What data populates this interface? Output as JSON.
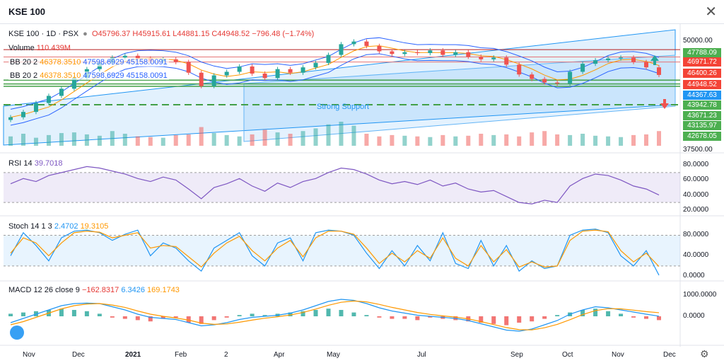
{
  "window": {
    "title": "KSE 100"
  },
  "legend": {
    "symbol": "KSE 100 · 1D · PSX",
    "ohlc": "O45796.37 H45915.61 L44881.15 C44948.52 −796.48 (−1.74%)",
    "volume_label": "Volume",
    "volume_value": "110.439M",
    "bb1_label": "BB 20 2",
    "bb1_basis": "46378.3510",
    "bb1_upper": "47598.6929",
    "bb1_lower": "45158.0091",
    "bb2_label": "BB 20 2",
    "bb2_basis": "46378.3510",
    "bb2_upper": "47598.6929",
    "bb2_lower": "45158.0091",
    "rsi_label": "RSI 14",
    "rsi_value": "39.7018",
    "stoch_label": "Stoch 14 1 3",
    "stoch_k": "2.4702",
    "stoch_d": "19.3105",
    "macd_label": "MACD 12 26 close 9",
    "macd_hist": "−162.8317",
    "macd_macd": "6.3426",
    "macd_signal": "169.1743"
  },
  "annotations": {
    "support_text": "Strong Support"
  },
  "colors": {
    "up": "#26a69a",
    "down": "#ef5350",
    "bb_fill": "#2196f3",
    "rsi": "#7e57c2",
    "stoch_k": "#2196f3",
    "stoch_d": "#ff9800",
    "support": "#43a047"
  },
  "chart_data": [
    {
      "type": "candlestick",
      "title": "KSE 100 · 1D · PSX",
      "x": [
        "Nov",
        "Dec",
        "2021",
        "Feb",
        "2",
        "Apr",
        "May",
        "Jul",
        "Sep",
        "Oct",
        "Nov",
        "Dec"
      ],
      "close_path": [
        40200,
        40800,
        41800,
        42600,
        43400,
        44600,
        45600,
        46300,
        46900,
        47100,
        46800,
        46500,
        46700,
        46400,
        45200,
        43700,
        44900,
        45300,
        45900,
        45100,
        44600,
        45600,
        45200,
        45800,
        46300,
        47200,
        48400,
        48700,
        48200,
        47600,
        47300,
        47500,
        47400,
        47700,
        47200,
        47500,
        47000,
        46700,
        46900,
        46100,
        45000,
        44500,
        44100,
        44000,
        45300,
        46200,
        46600,
        46800,
        46900,
        46400,
        45800,
        44948
      ],
      "volume_path": [
        70,
        90,
        60,
        80,
        95,
        100,
        85,
        75,
        110,
        90,
        70,
        65,
        60,
        80,
        85,
        140,
        95,
        80,
        70,
        85,
        120,
        100,
        90,
        110,
        130,
        160,
        180,
        150,
        90,
        70,
        80,
        75,
        70,
        65,
        80,
        70,
        75,
        90,
        80,
        85,
        70,
        100,
        110,
        85,
        80,
        90,
        75,
        70,
        65,
        80,
        85,
        110
      ],
      "price_axis": [
        "50000.00",
        "37500.00"
      ],
      "price_tags": [
        {
          "value": "47788.09",
          "color": "#4caf50"
        },
        {
          "value": "46971.72",
          "color": "#f44336"
        },
        {
          "value": "46400.26",
          "color": "#f44336"
        },
        {
          "value": "44948.52",
          "color": "#f44336"
        },
        {
          "value": "44367.63",
          "color": "#2196f3"
        },
        {
          "value": "43942.78",
          "color": "#4caf50"
        },
        {
          "value": "43671.23",
          "color": "#4caf50"
        },
        {
          "value": "43135.97",
          "color": "#4caf50"
        },
        {
          "value": "42678.05",
          "color": "#4caf50"
        }
      ]
    },
    {
      "type": "line",
      "name": "RSI 14",
      "values": [
        55,
        62,
        58,
        66,
        70,
        74,
        78,
        76,
        72,
        68,
        62,
        58,
        64,
        60,
        48,
        35,
        50,
        55,
        62,
        52,
        45,
        56,
        50,
        58,
        62,
        70,
        76,
        74,
        68,
        60,
        55,
        58,
        54,
        60,
        52,
        56,
        48,
        44,
        46,
        38,
        30,
        28,
        33,
        30,
        52,
        62,
        68,
        66,
        60,
        52,
        48,
        40
      ],
      "y_ticks": [
        "80.0000",
        "60.0000",
        "40.0000",
        "20.0000"
      ],
      "ylim": [
        15,
        85
      ]
    },
    {
      "type": "line",
      "name": "Stoch 14 1 3",
      "k": [
        40,
        85,
        60,
        30,
        75,
        88,
        90,
        85,
        70,
        82,
        90,
        40,
        65,
        55,
        30,
        10,
        55,
        70,
        85,
        40,
        20,
        65,
        75,
        30,
        85,
        90,
        88,
        80,
        45,
        15,
        50,
        20,
        60,
        30,
        85,
        25,
        15,
        70,
        20,
        60,
        10,
        30,
        15,
        20,
        80,
        90,
        92,
        85,
        40,
        20,
        50,
        2
      ],
      "d": [
        45,
        75,
        65,
        40,
        65,
        85,
        88,
        86,
        75,
        80,
        85,
        55,
        60,
        58,
        38,
        18,
        45,
        65,
        78,
        50,
        30,
        55,
        70,
        38,
        75,
        88,
        88,
        82,
        55,
        25,
        45,
        28,
        50,
        35,
        75,
        35,
        20,
        60,
        28,
        52,
        18,
        28,
        18,
        20,
        70,
        88,
        90,
        87,
        50,
        28,
        45,
        19
      ],
      "y_ticks": [
        "80.0000",
        "40.0000",
        "0.0000"
      ],
      "ylim": [
        -5,
        100
      ]
    },
    {
      "type": "bar",
      "name": "MACD 12 26 close 9",
      "hist": [
        2,
        3,
        4,
        5,
        6,
        5,
        4,
        2,
        -1,
        -2,
        -3,
        -4,
        -2,
        -1,
        -5,
        -6,
        -3,
        -1,
        1,
        2,
        1,
        2,
        3,
        4,
        5,
        6,
        5,
        3,
        1,
        -1,
        -2,
        -2,
        -3,
        -1,
        -2,
        -3,
        -4,
        -5,
        -6,
        -7,
        -5,
        -4,
        -2,
        1,
        3,
        5,
        6,
        4,
        2,
        -1,
        -2,
        -3
      ],
      "macd": [
        -300,
        -100,
        100,
        300,
        500,
        600,
        620,
        600,
        450,
        300,
        100,
        -50,
        -100,
        -150,
        -300,
        -450,
        -400,
        -300,
        -150,
        -50,
        0,
        50,
        150,
        300,
        500,
        700,
        800,
        750,
        600,
        400,
        250,
        150,
        50,
        0,
        -50,
        -100,
        -200,
        -350,
        -500,
        -650,
        -700,
        -600,
        -400,
        -200,
        100,
        300,
        450,
        400,
        300,
        200,
        100,
        6
      ],
      "signal": [
        -400,
        -250,
        -50,
        150,
        350,
        500,
        580,
        600,
        530,
        420,
        250,
        100,
        0,
        -80,
        -180,
        -320,
        -380,
        -360,
        -280,
        -180,
        -90,
        -20,
        60,
        180,
        340,
        520,
        660,
        720,
        680,
        560,
        420,
        300,
        180,
        90,
        20,
        -40,
        -120,
        -250,
        -390,
        -530,
        -630,
        -640,
        -540,
        -380,
        -160,
        80,
        270,
        360,
        350,
        290,
        220,
        169
      ],
      "y_ticks": [
        "1000.0000",
        "0.0000"
      ],
      "ylim": [
        -1300,
        1300
      ]
    }
  ]
}
